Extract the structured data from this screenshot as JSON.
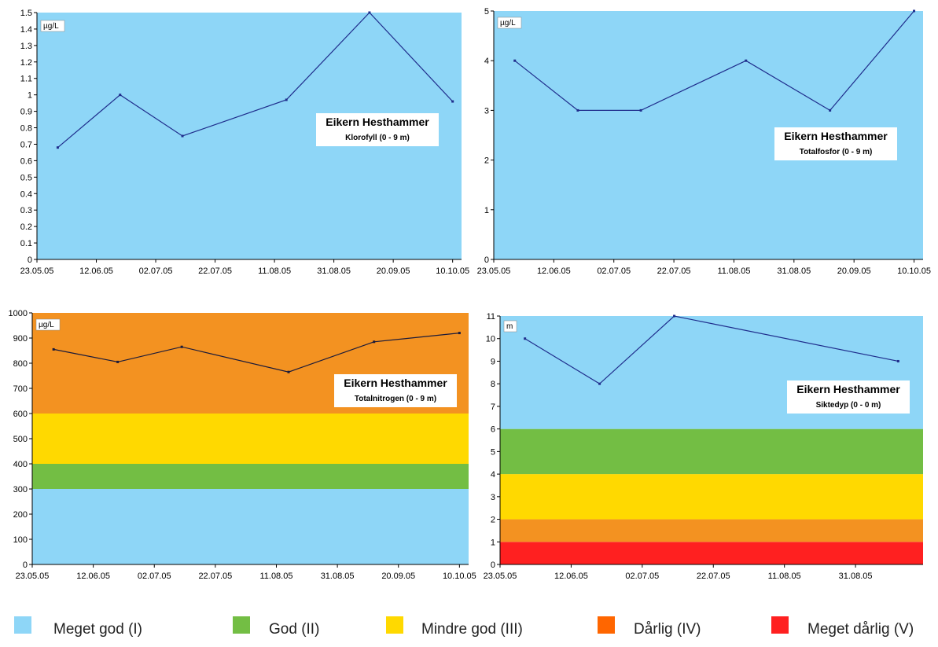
{
  "legend": {
    "items": [
      {
        "label": "Meget god (I)",
        "color": "#8ed6f7"
      },
      {
        "label": "God (II)",
        "color": "#73be44"
      },
      {
        "label": "Mindre god (III)",
        "color": "#ffd900"
      },
      {
        "label": "Dårlig (IV)",
        "color": "#ff6600"
      },
      {
        "label": "Meget dårlig (V)",
        "color": "#ff2020"
      }
    ]
  },
  "chart_data": [
    {
      "type": "line",
      "title": "Eikern Hesthammer",
      "subtitle": "Klorofyll (0 - 9 m)",
      "unit": "µg/L",
      "x_ticks": [
        "23.05.05",
        "12.06.05",
        "02.07.05",
        "22.07.05",
        "11.08.05",
        "31.08.05",
        "20.09.05",
        "10.10.05"
      ],
      "y_ticks": [
        "0",
        "0.1",
        "0.2",
        "0.3",
        "0.4",
        "0.5",
        "0.6",
        "0.7",
        "0.8",
        "0.9",
        "1",
        "1.1",
        "1.2",
        "1.3",
        "1.4",
        "1.5"
      ],
      "ylim": [
        0,
        1.5
      ],
      "xlim": [
        "2005-05-23",
        "2005-10-13"
      ],
      "series": [
        {
          "x": [
            "2005-05-30",
            "2005-06-20",
            "2005-07-11",
            "2005-08-15",
            "2005-09-12",
            "2005-10-10"
          ],
          "values": [
            0.68,
            1.0,
            0.75,
            0.97,
            1.5,
            0.96
          ]
        }
      ],
      "bands": [
        {
          "from": 0,
          "to": 1.5,
          "color": "#8ed6f7"
        }
      ],
      "line_color": "#1f2d8c"
    },
    {
      "type": "line",
      "title": "Eikern Hesthammer",
      "subtitle": "Totalfosfor (0 - 9 m)",
      "unit": "µg/L",
      "x_ticks": [
        "23.05.05",
        "12.06.05",
        "02.07.05",
        "22.07.05",
        "11.08.05",
        "31.08.05",
        "20.09.05",
        "10.10.05"
      ],
      "y_ticks": [
        "0",
        "1",
        "2",
        "3",
        "4",
        "5"
      ],
      "ylim": [
        0,
        5
      ],
      "xlim": [
        "2005-05-23",
        "2005-10-13"
      ],
      "series": [
        {
          "x": [
            "2005-05-30",
            "2005-06-20",
            "2005-07-11",
            "2005-08-15",
            "2005-09-12",
            "2005-10-10"
          ],
          "values": [
            4,
            3,
            3,
            4,
            3,
            5
          ]
        }
      ],
      "bands": [
        {
          "from": 0,
          "to": 5,
          "color": "#8ed6f7"
        }
      ],
      "line_color": "#1f2d8c"
    },
    {
      "type": "line",
      "title": "Eikern Hesthammer",
      "subtitle": "Totalnitrogen (0 - 9 m)",
      "unit": "µg/L",
      "x_ticks": [
        "23.05.05",
        "12.06.05",
        "02.07.05",
        "22.07.05",
        "11.08.05",
        "31.08.05",
        "20.09.05",
        "10.10.05"
      ],
      "y_ticks": [
        "0",
        "100",
        "200",
        "300",
        "400",
        "500",
        "600",
        "700",
        "800",
        "900",
        "1000"
      ],
      "ylim": [
        0,
        1000
      ],
      "xlim": [
        "2005-05-23",
        "2005-10-13"
      ],
      "series": [
        {
          "x": [
            "2005-05-30",
            "2005-06-20",
            "2005-07-11",
            "2005-08-15",
            "2005-09-12",
            "2005-10-10"
          ],
          "values": [
            855,
            805,
            865,
            765,
            885,
            920
          ]
        }
      ],
      "bands": [
        {
          "from": 0,
          "to": 300,
          "color": "#8ed6f7"
        },
        {
          "from": 300,
          "to": 400,
          "color": "#73be44"
        },
        {
          "from": 400,
          "to": 600,
          "color": "#ffd900"
        },
        {
          "from": 600,
          "to": 1000,
          "color": "#f39221"
        }
      ],
      "line_color": "#1a1a3a"
    },
    {
      "type": "line",
      "title": "Eikern Hesthammer",
      "subtitle": "Siktedyp (0 - 0 m)",
      "unit": "m",
      "x_ticks": [
        "23.05.05",
        "12.06.05",
        "02.07.05",
        "22.07.05",
        "11.08.05",
        "31.08.05"
      ],
      "y_ticks": [
        "0",
        "1",
        "2",
        "3",
        "4",
        "5",
        "6",
        "7",
        "8",
        "9",
        "10",
        "11"
      ],
      "ylim": [
        0,
        11
      ],
      "xlim": [
        "2005-05-23",
        "2005-09-19"
      ],
      "series": [
        {
          "x": [
            "2005-05-30",
            "2005-06-20",
            "2005-07-11",
            "2005-09-12"
          ],
          "values": [
            10,
            8,
            11,
            9
          ]
        }
      ],
      "bands": [
        {
          "from": 0,
          "to": 1,
          "color": "#ff2020"
        },
        {
          "from": 1,
          "to": 2,
          "color": "#f39221"
        },
        {
          "from": 2,
          "to": 4,
          "color": "#ffd900"
        },
        {
          "from": 4,
          "to": 6,
          "color": "#73be44"
        },
        {
          "from": 6,
          "to": 11,
          "color": "#8ed6f7"
        }
      ],
      "line_color": "#1f2d8c"
    }
  ]
}
